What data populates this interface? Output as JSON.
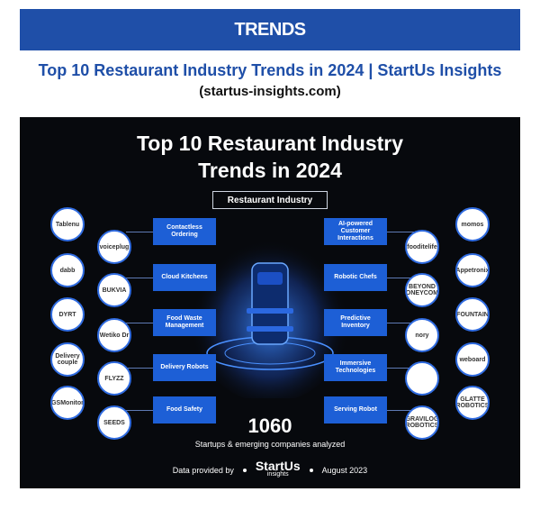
{
  "banner": {
    "label": "TRENDS"
  },
  "headline": {
    "title": "Top 10 Restaurant Industry Trends in 2024 | StartUs Insights",
    "source": "(startus-insights.com)"
  },
  "infographic": {
    "title_line1": "Top 10 Restaurant Industry",
    "title_line2": "Trends in 2024",
    "center_label": "Restaurant Industry",
    "left_trends": [
      "Contactless Ordering",
      "Cloud Kitchens",
      "Food Waste Management",
      "Delivery Robots",
      "Food Safety"
    ],
    "right_trends": [
      "AI-powered Customer Interactions",
      "Robotic Chefs",
      "Predictive Inventory",
      "Immersive Technologies",
      "Serving Robot"
    ],
    "left_logos_outer": [
      "Tablenu",
      "dabb",
      "DYRT",
      "Delivery couple",
      "GSMonitor"
    ],
    "left_logos_inner": [
      "voiceplug",
      "BUKVIA",
      "Wetiko Dr",
      "FLYZZ",
      "SEEDS"
    ],
    "right_logos_inner": [
      "fooditelife",
      "BEYOND HONEYCOMB",
      "nory",
      "",
      "GRAVILOG ROBOTICS"
    ],
    "right_logos_outer": [
      "momos",
      "Appetronix",
      "FOUNTAIN",
      "weboard",
      "GLATTE ROBOTICS"
    ],
    "stat_number": "1060",
    "stat_text": "Startups & emerging companies analyzed",
    "footer_left": "Data provided by",
    "brand_name": "StartUs",
    "brand_sub": "insights",
    "footer_right": "August 2023"
  }
}
